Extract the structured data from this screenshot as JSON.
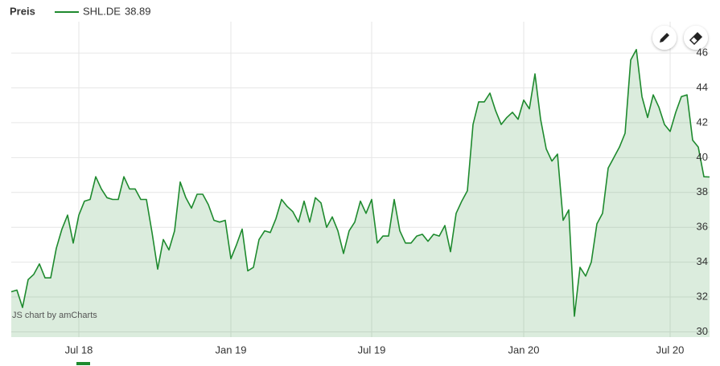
{
  "chart_data": {
    "type": "line",
    "header": "Preis",
    "credit": "JS chart by amCharts",
    "legend_value": 38.89,
    "grid": true,
    "series": [
      {
        "name": "SHL.DE",
        "color": "#1e8a2e",
        "values": [
          32.3,
          32.4,
          31.4,
          33.0,
          33.3,
          33.9,
          33.1,
          33.1,
          34.8,
          35.9,
          36.7,
          35.1,
          36.7,
          37.5,
          37.6,
          38.9,
          38.2,
          37.7,
          37.6,
          37.6,
          38.9,
          38.2,
          38.2,
          37.6,
          37.6,
          35.7,
          33.6,
          35.3,
          34.7,
          35.8,
          38.6,
          37.7,
          37.1,
          37.9,
          37.9,
          37.3,
          36.4,
          36.3,
          36.4,
          34.2,
          35.0,
          35.9,
          33.5,
          33.7,
          35.3,
          35.8,
          35.7,
          36.5,
          37.6,
          37.2,
          36.9,
          36.3,
          37.5,
          36.3,
          37.7,
          37.4,
          36.0,
          36.6,
          35.8,
          34.5,
          35.8,
          36.3,
          37.5,
          36.8,
          37.6,
          35.1,
          35.5,
          35.5,
          37.6,
          35.8,
          35.1,
          35.1,
          35.5,
          35.6,
          35.2,
          35.6,
          35.5,
          36.1,
          34.6,
          36.8,
          37.5,
          38.1,
          41.9,
          43.2,
          43.2,
          43.7,
          42.7,
          41.9,
          42.3,
          42.6,
          42.2,
          43.3,
          42.8,
          44.8,
          42.2,
          40.5,
          39.8,
          40.2,
          36.4,
          37.0,
          30.9,
          33.7,
          33.2,
          34.0,
          36.2,
          36.8,
          39.4,
          40.0,
          40.6,
          41.4,
          45.6,
          46.2,
          43.5,
          42.3,
          43.6,
          42.9,
          41.9,
          41.5,
          42.6,
          43.5,
          43.6,
          41.0,
          40.6,
          38.9,
          38.89
        ]
      }
    ],
    "ylim": [
      29.7,
      47.8
    ],
    "yticks": [
      30,
      32,
      34,
      36,
      38,
      40,
      42,
      44,
      46
    ],
    "xticks": [
      {
        "value": 12,
        "label": "Jul 18"
      },
      {
        "value": 39,
        "label": "Jan 19"
      },
      {
        "value": 64,
        "label": "Jul 19"
      },
      {
        "value": 91,
        "label": "Jan 20"
      },
      {
        "value": 117,
        "label": "Jul 20"
      }
    ]
  }
}
